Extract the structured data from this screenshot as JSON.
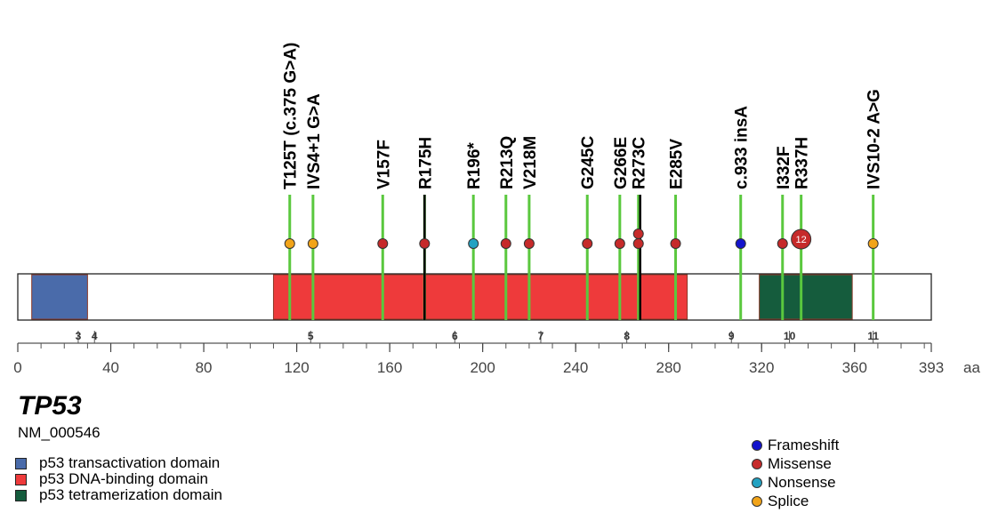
{
  "gene": {
    "name": "TP53",
    "accession": "NM_000546"
  },
  "protein_length": 393,
  "axis": {
    "unit": "aa",
    "ticks": [
      0,
      40,
      80,
      120,
      160,
      200,
      240,
      280,
      320,
      360,
      393
    ]
  },
  "exons": [
    {
      "label": "3",
      "aa": 26
    },
    {
      "label": "4",
      "aa": 33
    },
    {
      "label": "5",
      "aa": 126
    },
    {
      "label": "6",
      "aa": 188
    },
    {
      "label": "7",
      "aa": 225
    },
    {
      "label": "8",
      "aa": 262
    },
    {
      "label": "9",
      "aa": 307
    },
    {
      "label": "10",
      "aa": 332
    },
    {
      "label": "11",
      "aa": 368
    }
  ],
  "domains": [
    {
      "name": "p53 transactivation domain",
      "start": 6,
      "end": 30,
      "color": "#4a6baa"
    },
    {
      "name": "p53 DNA-binding domain",
      "start": 110,
      "end": 288,
      "color": "#ee3a3b"
    },
    {
      "name": "p53 tetramerization domain",
      "start": 319,
      "end": 359,
      "color": "#155c3d"
    }
  ],
  "mutation_types": [
    {
      "name": "Frameshift",
      "color": "#1414cc"
    },
    {
      "name": "Missense",
      "color": "#c62a2a"
    },
    {
      "name": "Nonsense",
      "color": "#23a2c2"
    },
    {
      "name": "Splice",
      "color": "#f2a419"
    }
  ],
  "mutations": [
    {
      "label": "T125T (c.375 G>A)",
      "aa": 117,
      "type": "Splice",
      "count": 1,
      "highlight": false
    },
    {
      "label": "IVS4+1 G>A",
      "aa": 127,
      "type": "Splice",
      "count": 1,
      "highlight": false
    },
    {
      "label": "V157F",
      "aa": 157,
      "type": "Missense",
      "count": 1,
      "highlight": false
    },
    {
      "label": "R175H",
      "aa": 175,
      "type": "Missense",
      "count": 1,
      "highlight": true
    },
    {
      "label": "R196*",
      "aa": 196,
      "type": "Nonsense",
      "count": 1,
      "highlight": false
    },
    {
      "label": "R213Q",
      "aa": 210,
      "type": "Missense",
      "count": 1,
      "highlight": false
    },
    {
      "label": "V218M",
      "aa": 220,
      "type": "Missense",
      "count": 1,
      "highlight": false
    },
    {
      "label": "G245C",
      "aa": 245,
      "type": "Missense",
      "count": 1,
      "highlight": false
    },
    {
      "label": "G266E",
      "aa": 259,
      "type": "Missense",
      "count": 1,
      "highlight": false
    },
    {
      "label": "R273C",
      "aa": 267,
      "type": "Missense",
      "count": 2,
      "highlight": true
    },
    {
      "label": "E285V",
      "aa": 283,
      "type": "Missense",
      "count": 1,
      "highlight": false
    },
    {
      "label": "c.933 insA",
      "aa": 311,
      "type": "Frameshift",
      "count": 1,
      "highlight": false
    },
    {
      "label": "I332F",
      "aa": 329,
      "type": "Missense",
      "count": 1,
      "highlight": false
    },
    {
      "label": "R337H",
      "aa": 337,
      "type": "Missense",
      "count": 12,
      "highlight": false,
      "count_label": "12"
    },
    {
      "label": "IVS10-2 A>G",
      "aa": 368,
      "type": "Splice",
      "count": 1,
      "highlight": false
    }
  ]
}
